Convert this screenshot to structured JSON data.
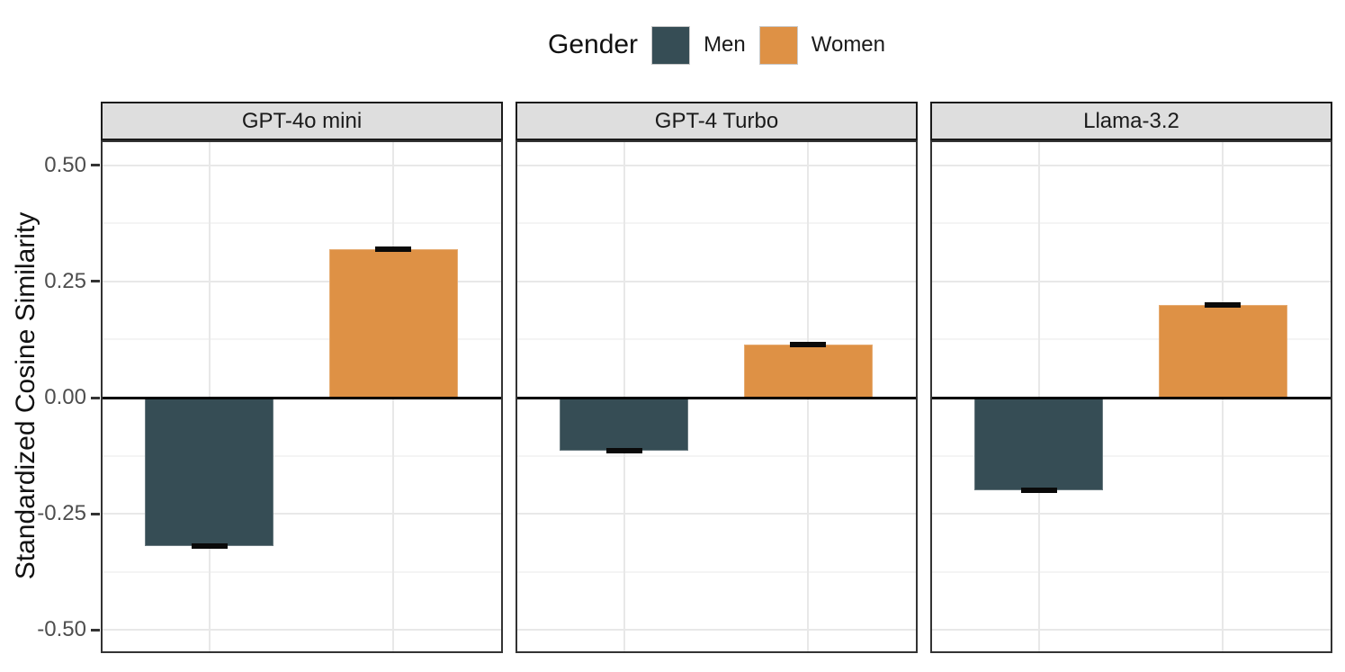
{
  "legend": {
    "title": "Gender",
    "items": [
      {
        "label": "Men",
        "color": "#364D55"
      },
      {
        "label": "Women",
        "color": "#DE9145"
      }
    ]
  },
  "chart_data": {
    "type": "bar",
    "title": "",
    "xlabel": "",
    "ylabel": "Standardized Cosine Similarity",
    "categories": [
      "Men",
      "Women"
    ],
    "facets": [
      {
        "title": "GPT-4o mini",
        "bars": [
          {
            "gender": "Men",
            "value": -0.32,
            "error": 0.006
          },
          {
            "gender": "Women",
            "value": 0.32,
            "error": 0.006
          }
        ]
      },
      {
        "title": "GPT-4 Turbo",
        "bars": [
          {
            "gender": "Men",
            "value": -0.115,
            "error": 0.006
          },
          {
            "gender": "Women",
            "value": 0.115,
            "error": 0.006
          }
        ]
      },
      {
        "title": "Llama-3.2",
        "bars": [
          {
            "gender": "Men",
            "value": -0.2,
            "error": 0.006
          },
          {
            "gender": "Women",
            "value": 0.2,
            "error": 0.006
          }
        ]
      }
    ],
    "ylim": [
      -0.55,
      0.554
    ],
    "yticks_major": [
      0.5,
      0.25,
      0,
      -0.25,
      -0.5
    ],
    "ytick_labels": [
      "0.50",
      "0.25",
      "0.00",
      "-0.25",
      "-0.50"
    ],
    "yticks_minor": [
      0.375,
      0.125,
      -0.125,
      -0.375
    ],
    "grid": "major+minor",
    "legend_position": "top",
    "baseline": 0
  },
  "colors": {
    "men_bar": "#364D55",
    "women_bar": "#DE9145",
    "strip_background": "#DEDEDE",
    "strip_border": "#1A1A1A",
    "strip_text": "#1A1A1A",
    "panel_border": "#333333",
    "grid_major": "#E8E8E8",
    "grid_minor": "#F4F4F4",
    "zero_line": "#000000",
    "error_bar": "#0A0A0A",
    "tick_label": "#4D4D4D",
    "tick_mark": "#333333"
  }
}
